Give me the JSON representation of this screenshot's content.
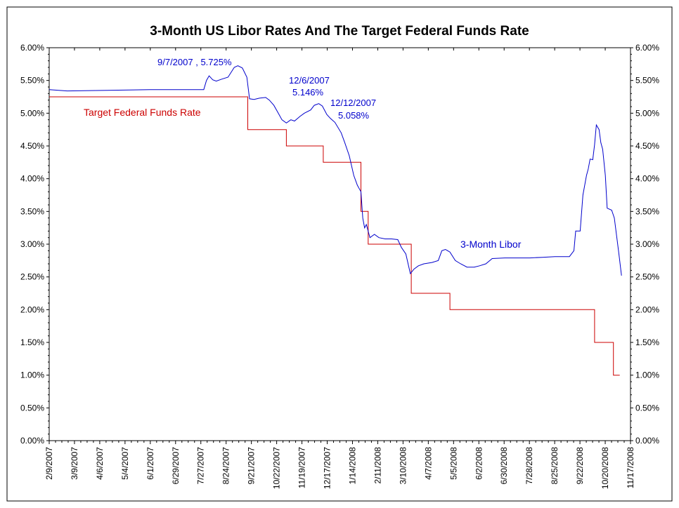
{
  "chart_data": {
    "type": "line",
    "title": "3-Month US Libor Rates And The Target Federal Funds Rate",
    "xlabel": "",
    "ylabel": "",
    "ylim": [
      0,
      6
    ],
    "xlim": [
      "2007-02-09",
      "2008-11-17"
    ],
    "grid": false,
    "legend": "none",
    "x_ticks": [
      "2/9/2007",
      "3/9/2007",
      "4/6/2007",
      "5/4/2007",
      "6/1/2007",
      "6/29/2007",
      "7/27/2007",
      "8/24/2007",
      "9/21/2007",
      "10/22/2007",
      "11/19/2007",
      "12/17/2007",
      "1/14/2008",
      "2/11/2008",
      "3/10/2008",
      "4/7/2008",
      "5/5/2008",
      "6/2/2008",
      "6/30/2008",
      "7/28/2008",
      "8/25/2008",
      "9/22/2008",
      "10/20/2008",
      "11/17/2008"
    ],
    "y_ticks": [
      "0.00%",
      "0.50%",
      "1.00%",
      "1.50%",
      "2.00%",
      "2.50%",
      "3.00%",
      "3.50%",
      "4.00%",
      "4.50%",
      "5.00%",
      "5.50%",
      "6.00%"
    ],
    "series": [
      {
        "label": "3-Month Libor",
        "color": "#0000cc",
        "points": [
          [
            "2007-02-09",
            5.36
          ],
          [
            "2007-03-01",
            5.34
          ],
          [
            "2007-04-15",
            5.35
          ],
          [
            "2007-06-01",
            5.36
          ],
          [
            "2007-07-31",
            5.36
          ],
          [
            "2007-08-03",
            5.5
          ],
          [
            "2007-08-06",
            5.57
          ],
          [
            "2007-08-10",
            5.51
          ],
          [
            "2007-08-14",
            5.49
          ],
          [
            "2007-08-20",
            5.52
          ],
          [
            "2007-08-27",
            5.55
          ],
          [
            "2007-09-03",
            5.7
          ],
          [
            "2007-09-07",
            5.725
          ],
          [
            "2007-09-12",
            5.69
          ],
          [
            "2007-09-17",
            5.55
          ],
          [
            "2007-09-20",
            5.22
          ],
          [
            "2007-09-25",
            5.21
          ],
          [
            "2007-10-01",
            5.23
          ],
          [
            "2007-10-08",
            5.24
          ],
          [
            "2007-10-12",
            5.2
          ],
          [
            "2007-10-17",
            5.12
          ],
          [
            "2007-10-22",
            5.0
          ],
          [
            "2007-10-26",
            4.9
          ],
          [
            "2007-10-31",
            4.85
          ],
          [
            "2007-11-05",
            4.9
          ],
          [
            "2007-11-09",
            4.88
          ],
          [
            "2007-11-15",
            4.95
          ],
          [
            "2007-11-20",
            5.0
          ],
          [
            "2007-11-27",
            5.05
          ],
          [
            "2007-12-01",
            5.12
          ],
          [
            "2007-12-06",
            5.146
          ],
          [
            "2007-12-10",
            5.11
          ],
          [
            "2007-12-12",
            5.058
          ],
          [
            "2007-12-15",
            4.98
          ],
          [
            "2007-12-19",
            4.92
          ],
          [
            "2007-12-24",
            4.86
          ],
          [
            "2007-12-31",
            4.7
          ],
          [
            "2008-01-04",
            4.55
          ],
          [
            "2008-01-09",
            4.35
          ],
          [
            "2008-01-14",
            4.05
          ],
          [
            "2008-01-18",
            3.9
          ],
          [
            "2008-01-22",
            3.8
          ],
          [
            "2008-01-24",
            3.4
          ],
          [
            "2008-01-26",
            3.25
          ],
          [
            "2008-01-28",
            3.3
          ],
          [
            "2008-02-01",
            3.1
          ],
          [
            "2008-02-06",
            3.15
          ],
          [
            "2008-02-11",
            3.1
          ],
          [
            "2008-02-18",
            3.08
          ],
          [
            "2008-02-25",
            3.08
          ],
          [
            "2008-03-03",
            3.07
          ],
          [
            "2008-03-07",
            2.95
          ],
          [
            "2008-03-12",
            2.85
          ],
          [
            "2008-03-17",
            2.55
          ],
          [
            "2008-03-21",
            2.62
          ],
          [
            "2008-03-26",
            2.67
          ],
          [
            "2008-04-01",
            2.7
          ],
          [
            "2008-04-10",
            2.72
          ],
          [
            "2008-04-17",
            2.75
          ],
          [
            "2008-04-21",
            2.9
          ],
          [
            "2008-04-25",
            2.92
          ],
          [
            "2008-04-30",
            2.88
          ],
          [
            "2008-05-06",
            2.75
          ],
          [
            "2008-05-12",
            2.7
          ],
          [
            "2008-05-19",
            2.65
          ],
          [
            "2008-05-27",
            2.65
          ],
          [
            "2008-06-02",
            2.67
          ],
          [
            "2008-06-09",
            2.7
          ],
          [
            "2008-06-16",
            2.78
          ],
          [
            "2008-06-30",
            2.79
          ],
          [
            "2008-07-14",
            2.79
          ],
          [
            "2008-07-28",
            2.79
          ],
          [
            "2008-08-11",
            2.8
          ],
          [
            "2008-08-25",
            2.81
          ],
          [
            "2008-09-10",
            2.81
          ],
          [
            "2008-09-15",
            2.9
          ],
          [
            "2008-09-17",
            3.2
          ],
          [
            "2008-09-22",
            3.2
          ],
          [
            "2008-09-25",
            3.75
          ],
          [
            "2008-09-29",
            4.05
          ],
          [
            "2008-10-01",
            4.15
          ],
          [
            "2008-10-03",
            4.3
          ],
          [
            "2008-10-06",
            4.29
          ],
          [
            "2008-10-08",
            4.52
          ],
          [
            "2008-10-10",
            4.82
          ],
          [
            "2008-10-13",
            4.75
          ],
          [
            "2008-10-15",
            4.55
          ],
          [
            "2008-10-17",
            4.45
          ],
          [
            "2008-10-20",
            4.05
          ],
          [
            "2008-10-22",
            3.55
          ],
          [
            "2008-10-27",
            3.52
          ],
          [
            "2008-10-30",
            3.4
          ],
          [
            "2008-11-04",
            2.86
          ],
          [
            "2008-11-07",
            2.52
          ]
        ]
      },
      {
        "label": "Target Federal Funds Rate",
        "color": "#cc0000",
        "step": true,
        "points": [
          [
            "2007-02-09",
            5.25
          ],
          [
            "2007-09-18",
            4.75
          ],
          [
            "2007-10-31",
            4.5
          ],
          [
            "2007-12-11",
            4.25
          ],
          [
            "2008-01-22",
            3.5
          ],
          [
            "2008-01-30",
            3.0
          ],
          [
            "2008-03-18",
            2.25
          ],
          [
            "2008-04-30",
            2.0
          ],
          [
            "2008-10-08",
            1.5
          ],
          [
            "2008-10-29",
            1.0
          ],
          [
            "2008-11-05",
            1.0
          ]
        ]
      }
    ],
    "annotations": [
      {
        "text": "9/7/2007 , 5.725%",
        "date": "2007-09-07",
        "value": 5.725
      },
      {
        "text": "12/6/2007",
        "date": "2007-12-06",
        "value": 5.146
      },
      {
        "text": "5.146%",
        "date": "2007-12-06",
        "value": 5.146
      },
      {
        "text": "12/12/2007",
        "date": "2007-12-12",
        "value": 5.058
      },
      {
        "text": "5.058%",
        "date": "2007-12-12",
        "value": 5.058
      }
    ]
  }
}
